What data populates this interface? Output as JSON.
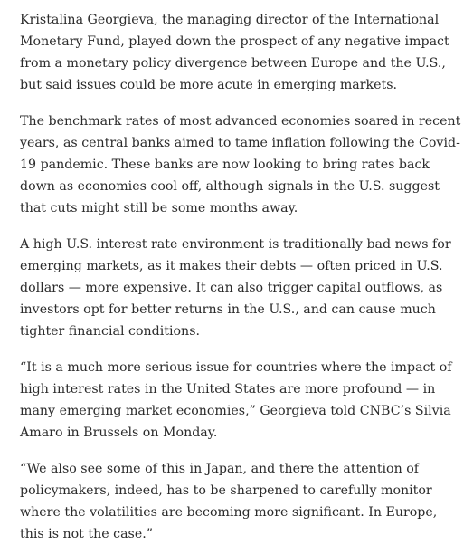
{
  "article": {
    "paragraphs": [
      "Kristalina Georgieva, the managing director of the International Monetary Fund, played down the prospect of any negative impact from a monetary policy divergence between Europe and the U.S., but said issues could be more acute in emerging markets.",
      "The benchmark rates of most advanced economies soared in recent years, as central banks aimed to tame inflation following the Covid-19 pandemic. These banks are now looking to bring rates back down as economies cool off, although signals in the U.S. suggest that cuts might still be some months away.",
      "A high U.S. interest rate environment is traditionally bad news for emerging markets, as it makes their debts — often priced in U.S. dollars — more expensive. It can also trigger capital outflows, as investors opt for better returns in the U.S., and can cause much tighter financial conditions.",
      "“It is a much more serious issue for countries where the impact of high interest rates in the United States are more profound — in many emerging market economies,” Georgieva told CNBC’s Silvia Amaro in Brussels on Monday.",
      "“We also see some of this in Japan, and there the attention of policymakers, indeed, has to be sharpened to carefully monitor where the volatilities are becoming more significant. In Europe, this is not the case.”"
    ]
  }
}
